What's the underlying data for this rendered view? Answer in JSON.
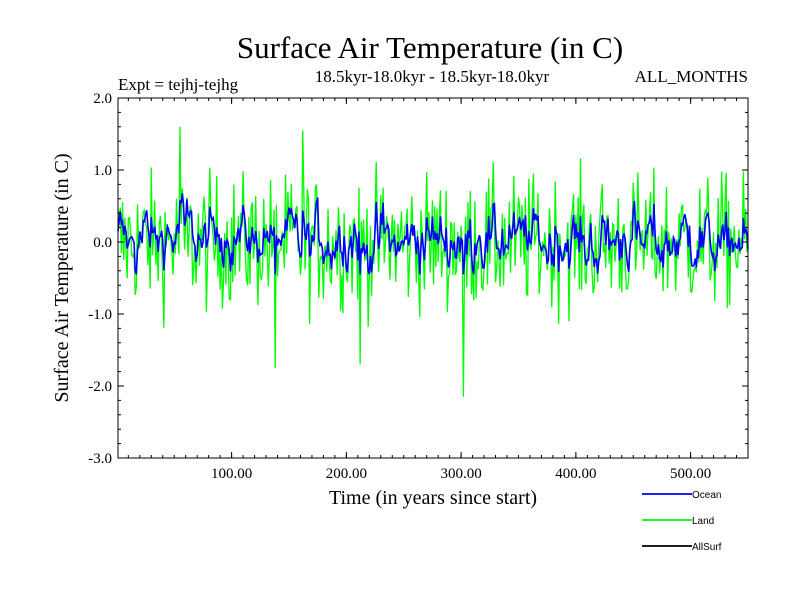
{
  "chart_data": {
    "type": "line",
    "title": "Surface Air Temperature (in C)",
    "subtitle_left": "Expt = tejhj-tejhg",
    "subtitle_center": "18.5kyr-18.0kyr - 18.5kyr-18.0kyr",
    "subtitle_right": "ALL_MONTHS",
    "xlabel": "Time (in years since start)",
    "ylabel": "Surface Air Temperature (in C)",
    "xlim": [
      1,
      550
    ],
    "ylim": [
      -3.0,
      2.0
    ],
    "x_ticks": [
      100,
      200,
      300,
      400,
      500
    ],
    "x_tick_labels": [
      "100.00",
      "200.00",
      "300.00",
      "400.00",
      "500.00"
    ],
    "y_ticks": [
      2.0,
      1.0,
      0.0,
      -1.0,
      -2.0,
      -3.0
    ],
    "y_tick_labels": [
      "2.0",
      "1.0",
      "0.0",
      "-1.0",
      "-2.0",
      "-3.0"
    ],
    "series": [
      {
        "name": "Land",
        "color": "#00ff00",
        "n_points": 550,
        "mean": 0.0,
        "amplitude": 0.45,
        "noted_extremes": [
          {
            "x": 55,
            "y": 1.6
          },
          {
            "x": 162,
            "y": 1.55
          },
          {
            "x": 302,
            "y": -2.15
          },
          {
            "x": 138,
            "y": -1.75
          },
          {
            "x": 212,
            "y": -1.7
          }
        ]
      },
      {
        "name": "Ocean",
        "color": "#0000ff",
        "n_points": 550,
        "mean": 0.05,
        "amplitude": 0.18
      },
      {
        "name": "AllSurf",
        "color": "#000000",
        "n_points": 550,
        "mean": 0.05,
        "amplitude": 0.18
      }
    ],
    "legend": {
      "placement": "bottom-right",
      "entries": [
        {
          "label": "Ocean",
          "color": "#0000ff"
        },
        {
          "label": "Land",
          "color": "#00ff00"
        },
        {
          "label": "AllSurf",
          "color": "#000000"
        }
      ]
    }
  }
}
